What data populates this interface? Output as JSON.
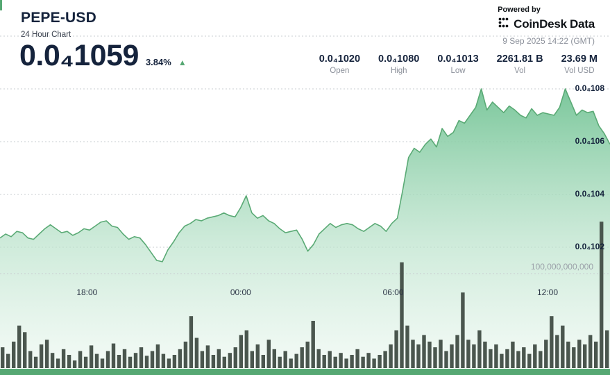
{
  "header": {
    "title": "PEPE-USD",
    "subtitle": "24 Hour Chart",
    "price": "0.0₄1059",
    "change_pct": "3.84%",
    "up_glyph": "▲",
    "powered_by": "Powered by",
    "brand_1": "CoinDesk",
    "brand_2": "Data",
    "timestamp": "9 Sep 2025 14:22 (GMT)"
  },
  "stats": [
    {
      "value": "0.0₄1020",
      "label": "Open"
    },
    {
      "value": "0.0₄1080",
      "label": "High"
    },
    {
      "value": "0.0₄1013",
      "label": "Low"
    },
    {
      "value": "2261.81 B",
      "label": "Vol"
    },
    {
      "value": "23.69 M",
      "label": "Vol USD"
    }
  ],
  "colors": {
    "accent": "#56a873",
    "line": "#5aaa75",
    "volume_bar": "#4a564e",
    "text_dark": "#15233c"
  },
  "chart_data": {
    "type": "area",
    "title": "PEPE-USD 24 Hour Chart",
    "price_unit": "price values are in 0.0000001 USD (e.g. 105.9 = 0.00001059)",
    "x_tick_labels": [
      "18:00",
      "00:00",
      "06:00",
      "12:00"
    ],
    "x_tick_positions": [
      0.146,
      0.398,
      0.648,
      0.901
    ],
    "y_axis": {
      "labels": [
        "0.0₄108",
        "0.0₄106",
        "0.0₄104",
        "0.0₄102"
      ],
      "values": [
        108,
        106,
        104,
        102
      ],
      "grid_values": [
        110,
        108,
        106,
        104,
        102
      ]
    },
    "volume_axis_label": "100,000,000,000",
    "volume_axis_value_b": 100,
    "open": 102.0,
    "high": 108.0,
    "low": 101.3,
    "close": 105.9,
    "price_series": [
      102.35,
      102.5,
      102.4,
      102.6,
      102.55,
      102.35,
      102.3,
      102.5,
      102.7,
      102.85,
      102.7,
      102.55,
      102.6,
      102.45,
      102.55,
      102.7,
      102.65,
      102.8,
      102.95,
      103.0,
      102.8,
      102.75,
      102.5,
      102.3,
      102.4,
      102.35,
      102.1,
      101.8,
      101.5,
      101.45,
      101.9,
      102.2,
      102.55,
      102.8,
      102.9,
      103.05,
      103.0,
      103.1,
      103.15,
      103.2,
      103.3,
      103.2,
      103.15,
      103.5,
      103.95,
      103.3,
      103.1,
      103.2,
      103.0,
      102.9,
      102.7,
      102.55,
      102.6,
      102.65,
      102.3,
      101.85,
      102.1,
      102.5,
      102.7,
      102.9,
      102.75,
      102.85,
      102.9,
      102.85,
      102.7,
      102.6,
      102.75,
      102.9,
      102.8,
      102.6,
      102.9,
      103.1,
      104.2,
      105.4,
      105.75,
      105.6,
      105.9,
      106.1,
      105.8,
      106.5,
      106.2,
      106.35,
      106.8,
      106.7,
      107.0,
      107.3,
      108.0,
      107.2,
      107.5,
      107.3,
      107.1,
      107.35,
      107.2,
      107.0,
      106.9,
      107.25,
      107.0,
      107.1,
      107.05,
      107.0,
      107.3,
      108.0,
      107.5,
      107.0,
      107.2,
      107.1,
      107.15,
      106.6,
      106.3,
      105.9
    ],
    "volume_series_b": [
      22,
      15,
      28,
      45,
      38,
      18,
      12,
      25,
      30,
      16,
      10,
      20,
      14,
      8,
      18,
      12,
      24,
      15,
      10,
      18,
      26,
      14,
      20,
      12,
      16,
      22,
      13,
      18,
      25,
      15,
      10,
      14,
      20,
      28,
      55,
      32,
      18,
      24,
      14,
      20,
      12,
      16,
      22,
      35,
      40,
      18,
      25,
      14,
      30,
      20,
      12,
      18,
      10,
      15,
      22,
      28,
      50,
      20,
      14,
      18,
      12,
      16,
      10,
      14,
      20,
      12,
      16,
      10,
      14,
      18,
      25,
      40,
      112,
      45,
      30,
      25,
      35,
      28,
      22,
      30,
      18,
      25,
      35,
      80,
      30,
      25,
      40,
      28,
      20,
      25,
      15,
      20,
      28,
      18,
      22,
      15,
      25,
      18,
      30,
      55,
      35,
      45,
      28,
      22,
      30,
      25,
      35,
      28,
      155,
      40
    ]
  }
}
